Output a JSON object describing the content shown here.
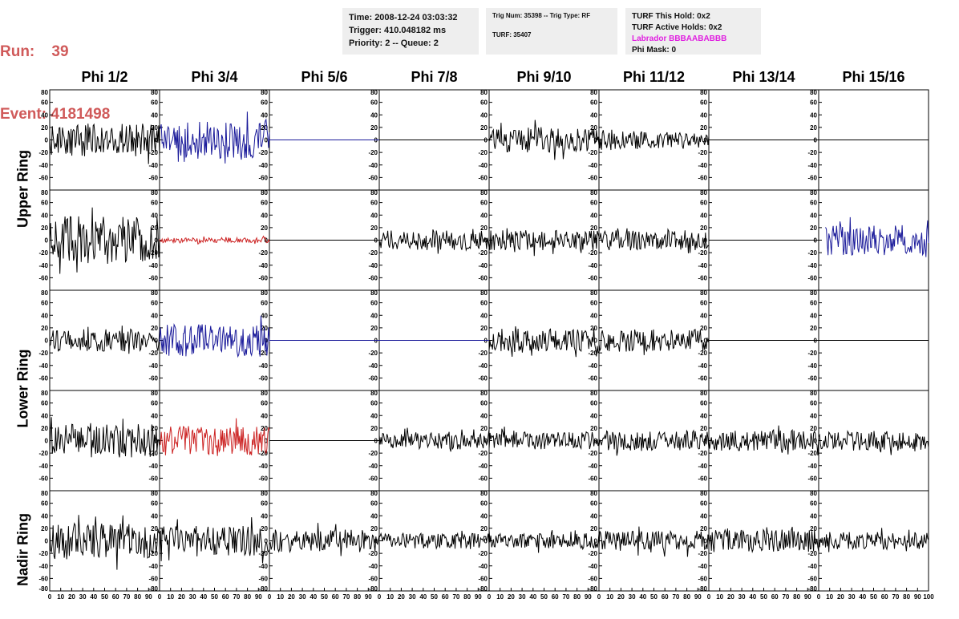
{
  "header": {
    "run_line": "Run:    39",
    "event_line": "Event: 4181498",
    "time": "Time: 2008-12-24 03:03:32",
    "trigger": "Trigger: 410.048182 ms",
    "priority": "Priority: 2 -- Queue: 2",
    "trig_num": "Trig Num: 35398 -- Trig Type: RF",
    "turf": "TURF: 35407",
    "turf_this_hold": "TURF This Hold: 0x2",
    "turf_active_holds": "TURF Active Holds: 0x2",
    "labrador": "Labrador BBBAABABBB",
    "phi_mask": "Phi Mask: 0"
  },
  "columns": [
    "Phi 1/2",
    "Phi 3/4",
    "Phi 5/6",
    "Phi 7/8",
    "Phi 9/10",
    "Phi 11/12",
    "Phi 13/14",
    "Phi 15/16"
  ],
  "rows": [
    "Upper Ring",
    "Lower Ring",
    "Nadir Ring"
  ],
  "colors": {
    "black": "#000000",
    "blue": "#1a1a9a",
    "red": "#cc2222",
    "magenta": "#e020e0",
    "run": "#d05a5a"
  },
  "chart_data": {
    "type": "line",
    "title": "",
    "xlim": [
      0,
      100
    ],
    "ylim": [
      -80,
      80
    ],
    "y_ticks": [
      -80,
      -60,
      -40,
      -20,
      0,
      20,
      40,
      60,
      80
    ],
    "x_ticks": [
      0,
      10,
      20,
      30,
      40,
      50,
      60,
      70,
      80,
      90,
      100
    ],
    "x_tick_labels": [
      "0",
      "10",
      "20",
      "30",
      "40",
      "50",
      "60",
      "70",
      "80",
      "90",
      "100"
    ],
    "panels": [
      {
        "row": 0,
        "col": 0,
        "color": "black",
        "shape": "noise",
        "amp": 26,
        "seed": 1
      },
      {
        "row": 0,
        "col": 1,
        "color": "blue",
        "shape": "noise",
        "amp": 30,
        "seed": 2
      },
      {
        "row": 0,
        "col": 2,
        "color": "blue",
        "shape": "flat",
        "amp": 0,
        "seed": 3
      },
      {
        "row": 0,
        "col": 3,
        "color": "black",
        "shape": "flat",
        "amp": 0,
        "seed": 4
      },
      {
        "row": 0,
        "col": 4,
        "color": "black",
        "shape": "noise",
        "amp": 20,
        "seed": 5
      },
      {
        "row": 0,
        "col": 5,
        "color": "black",
        "shape": "decay",
        "amp": 18,
        "seed": 6
      },
      {
        "row": 0,
        "col": 6,
        "color": "black",
        "shape": "flat",
        "amp": 0,
        "seed": 7
      },
      {
        "row": 0,
        "col": 7,
        "color": "black",
        "shape": "flat",
        "amp": 0,
        "seed": 8
      },
      {
        "row": 1,
        "col": 0,
        "color": "black",
        "shape": "noise",
        "amp": 38,
        "seed": 9
      },
      {
        "row": 1,
        "col": 1,
        "color": "red",
        "shape": "noise",
        "amp": 4,
        "seed": 10
      },
      {
        "row": 1,
        "col": 2,
        "color": "black",
        "shape": "flat",
        "amp": 0,
        "seed": 11
      },
      {
        "row": 1,
        "col": 3,
        "color": "black",
        "shape": "noise",
        "amp": 16,
        "seed": 12
      },
      {
        "row": 1,
        "col": 4,
        "color": "black",
        "shape": "noise",
        "amp": 16,
        "seed": 13
      },
      {
        "row": 1,
        "col": 5,
        "color": "black",
        "shape": "noise",
        "amp": 16,
        "seed": 14
      },
      {
        "row": 1,
        "col": 6,
        "color": "black",
        "shape": "flat",
        "amp": 0,
        "seed": 15
      },
      {
        "row": 1,
        "col": 7,
        "color": "blue",
        "shape": "late",
        "amp": 24,
        "seed": 16
      },
      {
        "row": 2,
        "col": 0,
        "color": "black",
        "shape": "noise",
        "amp": 18,
        "seed": 17
      },
      {
        "row": 2,
        "col": 1,
        "color": "blue",
        "shape": "noise",
        "amp": 26,
        "seed": 18
      },
      {
        "row": 2,
        "col": 2,
        "color": "blue",
        "shape": "flat",
        "amp": 0,
        "seed": 19
      },
      {
        "row": 2,
        "col": 3,
        "color": "blue",
        "shape": "flat",
        "amp": 0,
        "seed": 20
      },
      {
        "row": 2,
        "col": 4,
        "color": "black",
        "shape": "noise",
        "amp": 20,
        "seed": 21
      },
      {
        "row": 2,
        "col": 5,
        "color": "black",
        "shape": "noise",
        "amp": 18,
        "seed": 22
      },
      {
        "row": 2,
        "col": 6,
        "color": "black",
        "shape": "flat",
        "amp": 0,
        "seed": 23
      },
      {
        "row": 2,
        "col": 7,
        "color": "black",
        "shape": "flat",
        "amp": 0,
        "seed": 24
      },
      {
        "row": 3,
        "col": 0,
        "color": "black",
        "shape": "noise",
        "amp": 28,
        "seed": 25
      },
      {
        "row": 3,
        "col": 1,
        "color": "red",
        "shape": "noise",
        "amp": 24,
        "seed": 26
      },
      {
        "row": 3,
        "col": 2,
        "color": "black",
        "shape": "flat",
        "amp": 0,
        "seed": 27
      },
      {
        "row": 3,
        "col": 3,
        "color": "black",
        "shape": "noise",
        "amp": 14,
        "seed": 28
      },
      {
        "row": 3,
        "col": 4,
        "color": "black",
        "shape": "noise",
        "amp": 14,
        "seed": 29
      },
      {
        "row": 3,
        "col": 5,
        "color": "black",
        "shape": "noise",
        "amp": 16,
        "seed": 30
      },
      {
        "row": 3,
        "col": 6,
        "color": "black",
        "shape": "noise",
        "amp": 16,
        "seed": 31
      },
      {
        "row": 3,
        "col": 7,
        "color": "black",
        "shape": "noise",
        "amp": 16,
        "seed": 32
      },
      {
        "row": 4,
        "col": 0,
        "color": "black",
        "shape": "noise",
        "amp": 30,
        "seed": 33
      },
      {
        "row": 4,
        "col": 1,
        "color": "black",
        "shape": "noise",
        "amp": 24,
        "seed": 34
      },
      {
        "row": 4,
        "col": 2,
        "color": "black",
        "shape": "noise",
        "amp": 18,
        "seed": 35
      },
      {
        "row": 4,
        "col": 3,
        "color": "black",
        "shape": "noise",
        "amp": 12,
        "seed": 36
      },
      {
        "row": 4,
        "col": 4,
        "color": "black",
        "shape": "noise",
        "amp": 12,
        "seed": 37
      },
      {
        "row": 4,
        "col": 5,
        "color": "black",
        "shape": "noise",
        "amp": 16,
        "seed": 38
      },
      {
        "row": 4,
        "col": 6,
        "color": "black",
        "shape": "noise",
        "amp": 18,
        "seed": 39
      },
      {
        "row": 4,
        "col": 7,
        "color": "black",
        "shape": "noise",
        "amp": 14,
        "seed": 40
      }
    ]
  }
}
